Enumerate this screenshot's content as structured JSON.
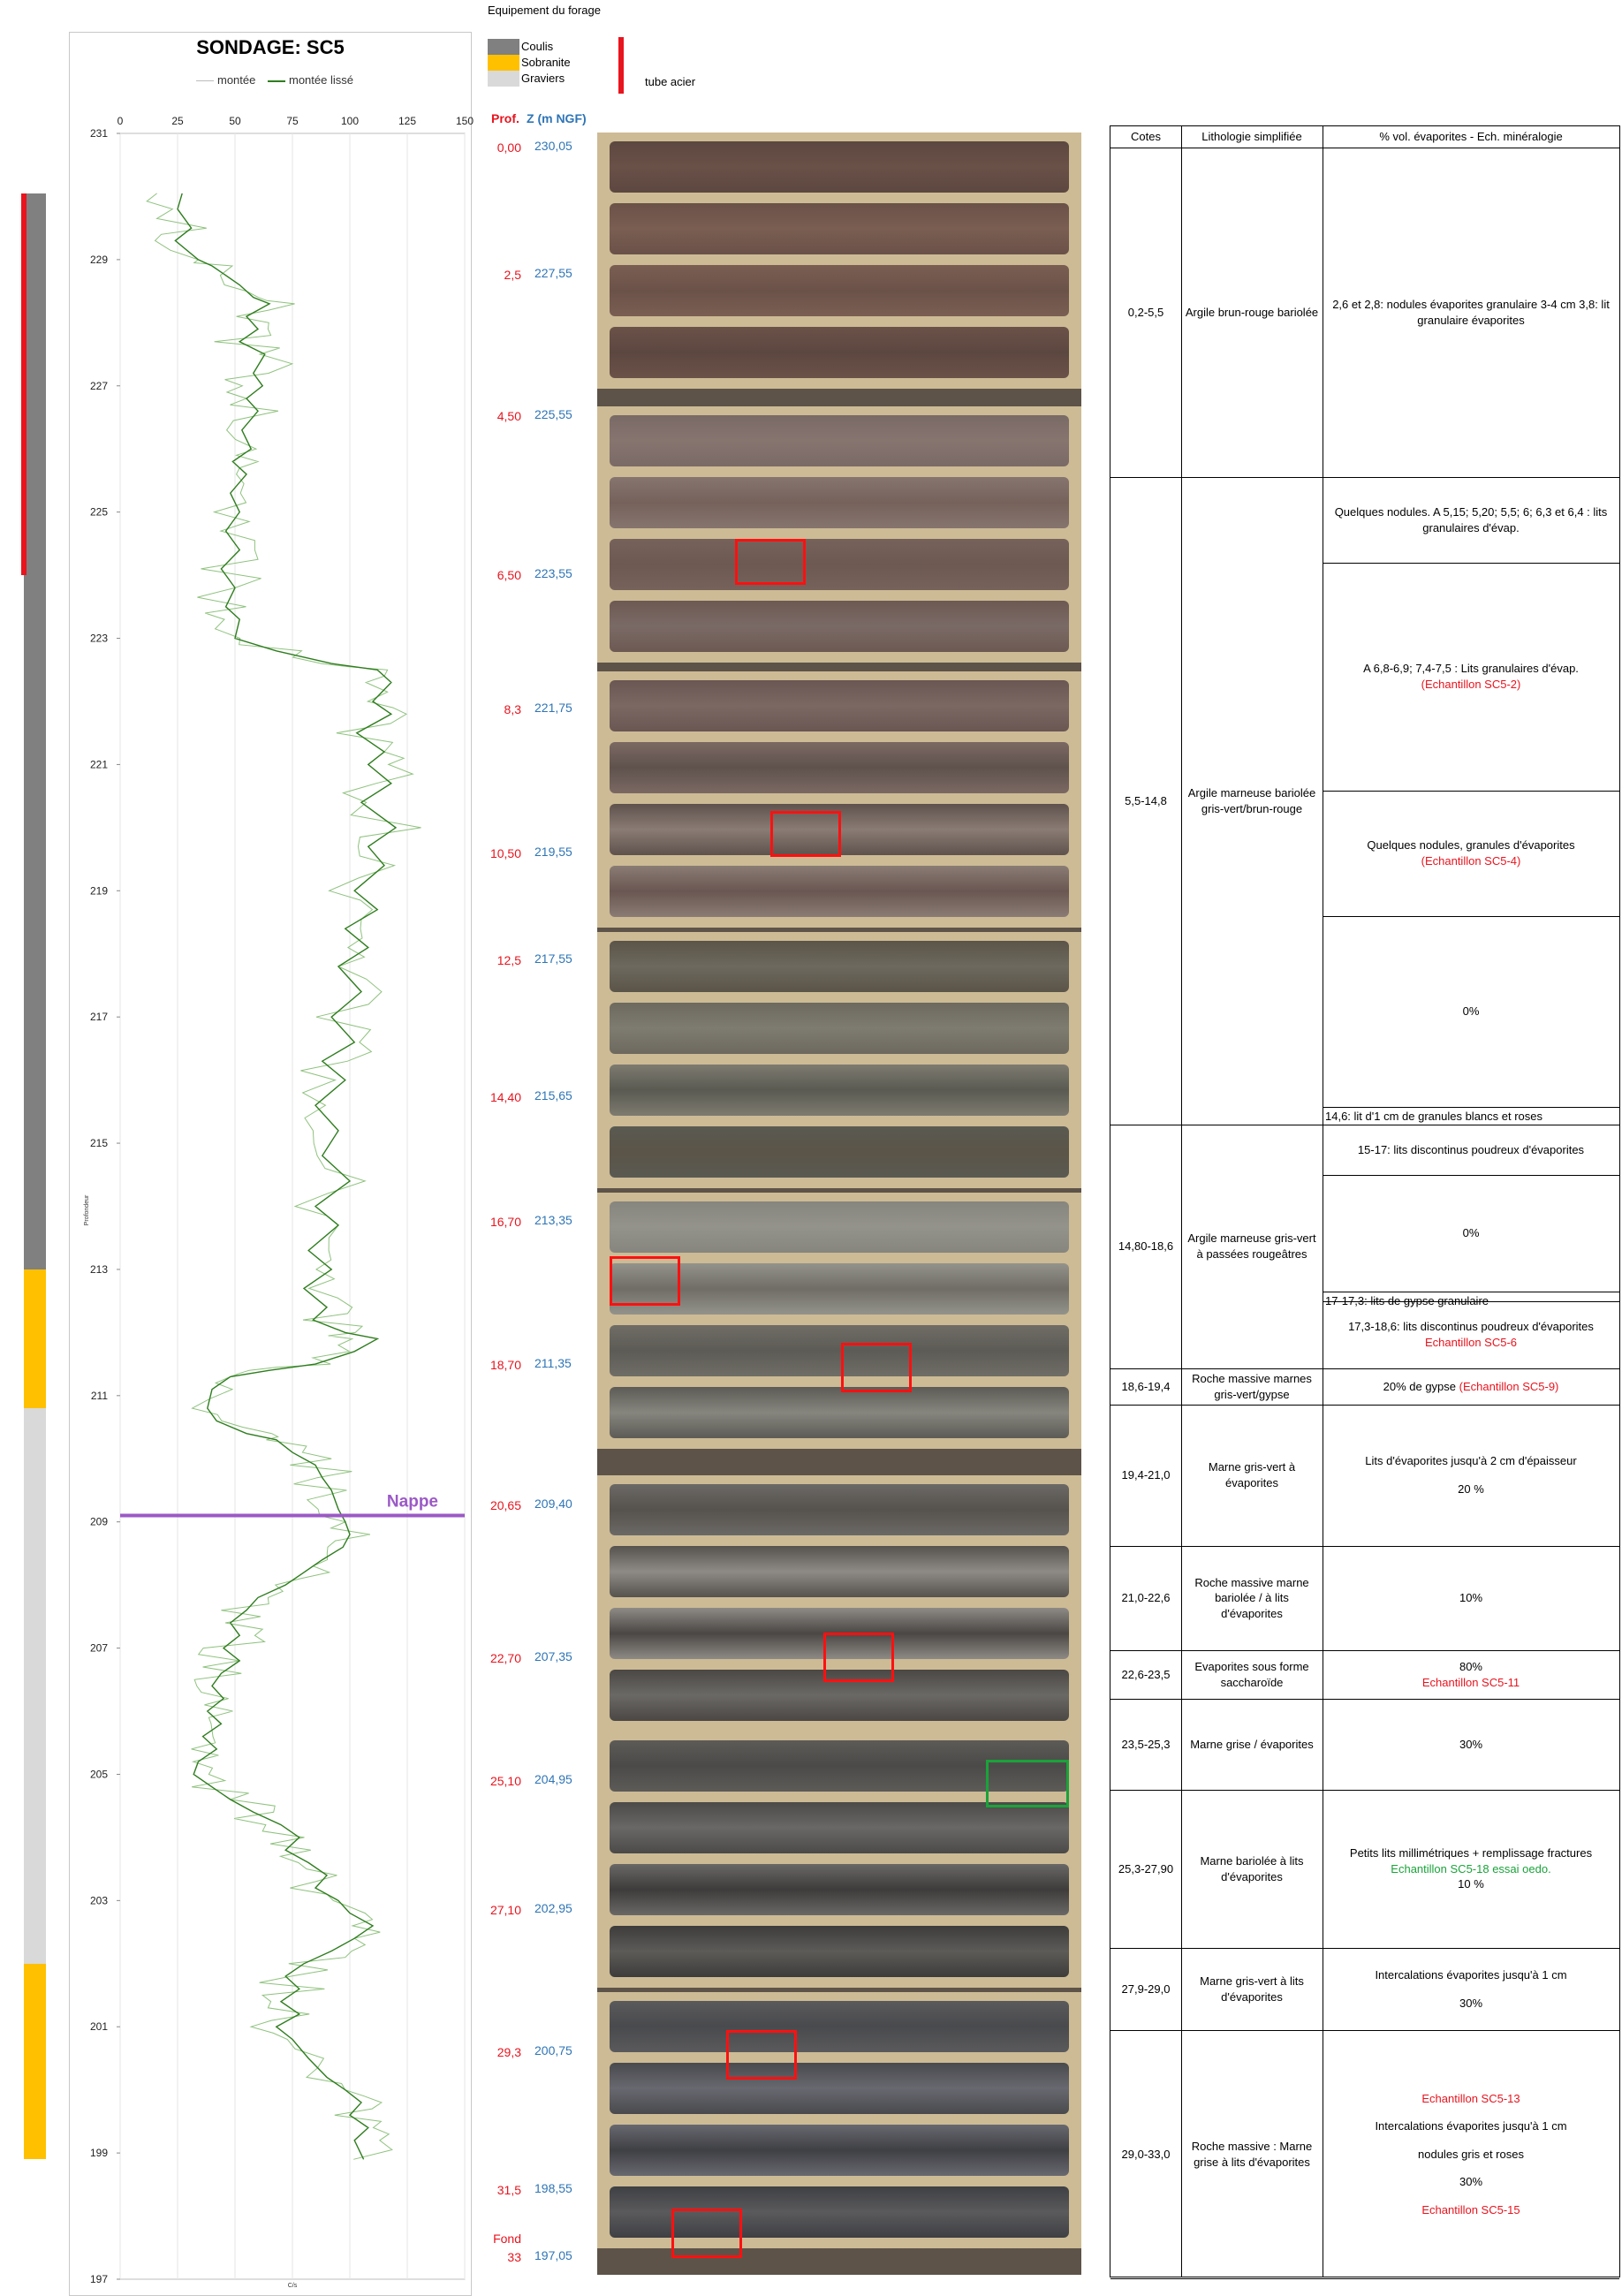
{
  "equipment": {
    "title": "Equipement du forage",
    "legend": [
      {
        "label": "Coulis",
        "color": "#808080"
      },
      {
        "label": "Sobranite",
        "color": "#ffc000"
      },
      {
        "label": "Graviers",
        "color": "#d9d9d9"
      }
    ],
    "tube_label": "tube acier",
    "tube_color": "#e8141e",
    "segments": [
      {
        "material": "Coulis",
        "from_z": 230.05,
        "to_z": 213.0
      },
      {
        "material": "Sobranite",
        "from_z": 213.0,
        "to_z": 210.8
      },
      {
        "material": "Graviers",
        "from_z": 210.8,
        "to_z": 202.0
      },
      {
        "material": "Sobranite",
        "from_z": 202.0,
        "to_z": 198.9
      }
    ],
    "tube_acier": {
      "from_z": 230.05,
      "to_z": 224.0
    }
  },
  "log": {
    "title": "SONDAGE: SC5",
    "legend": [
      "montée",
      "montée lissé"
    ],
    "y_axis_label": "Profondeur",
    "x_axis_label": "C/s",
    "nappe_label": "Nappe",
    "nappe_z": 209.1,
    "nappe_color": "#9b59c6",
    "curve_color": "#2e7d1e",
    "raw_color": "#8fc27e"
  },
  "chart_data": {
    "type": "line",
    "title": "SONDAGE: SC5",
    "xlabel": "C/s",
    "ylabel": "Profondeur",
    "xlim": [
      0,
      150
    ],
    "ylim": [
      197,
      231
    ],
    "x_ticks": [
      "0",
      "25",
      "50",
      "75",
      "100",
      "125",
      "150"
    ],
    "y_ticks": [
      "231",
      "229",
      "227",
      "225",
      "223",
      "221",
      "219",
      "217",
      "215",
      "213",
      "211",
      "209",
      "207",
      "205",
      "203",
      "201",
      "199",
      "197"
    ],
    "series": [
      {
        "name": "montée lissé",
        "points": [
          [
            27,
            230.05
          ],
          [
            25,
            229.8
          ],
          [
            31,
            229.5
          ],
          [
            24,
            229.3
          ],
          [
            34,
            229.0
          ],
          [
            40,
            228.9
          ],
          [
            52,
            228.6
          ],
          [
            58,
            228.4
          ],
          [
            65,
            228.3
          ],
          [
            55,
            228.1
          ],
          [
            60,
            227.9
          ],
          [
            52,
            227.7
          ],
          [
            63,
            227.5
          ],
          [
            58,
            227.2
          ],
          [
            62,
            227.0
          ],
          [
            55,
            226.8
          ],
          [
            60,
            226.6
          ],
          [
            53,
            226.3
          ],
          [
            57,
            226.0
          ],
          [
            49,
            225.8
          ],
          [
            55,
            225.6
          ],
          [
            48,
            225.3
          ],
          [
            52,
            225.0
          ],
          [
            46,
            224.7
          ],
          [
            52,
            224.4
          ],
          [
            44,
            224.1
          ],
          [
            50,
            223.8
          ],
          [
            46,
            223.5
          ],
          [
            52,
            223.3
          ],
          [
            50,
            223.0
          ],
          [
            68,
            222.8
          ],
          [
            92,
            222.6
          ],
          [
            112,
            222.5
          ],
          [
            118,
            222.3
          ],
          [
            110,
            222.0
          ],
          [
            118,
            221.8
          ],
          [
            103,
            221.5
          ],
          [
            115,
            221.2
          ],
          [
            108,
            221.0
          ],
          [
            118,
            220.7
          ],
          [
            105,
            220.4
          ],
          [
            120,
            220.0
          ],
          [
            108,
            219.7
          ],
          [
            115,
            219.4
          ],
          [
            102,
            219.0
          ],
          [
            112,
            218.7
          ],
          [
            98,
            218.4
          ],
          [
            108,
            218.1
          ],
          [
            95,
            217.8
          ],
          [
            105,
            217.4
          ],
          [
            92,
            217.0
          ],
          [
            102,
            216.6
          ],
          [
            88,
            216.3
          ],
          [
            98,
            216.0
          ],
          [
            85,
            215.6
          ],
          [
            95,
            215.2
          ],
          [
            88,
            214.8
          ],
          [
            100,
            214.4
          ],
          [
            85,
            214.0
          ],
          [
            95,
            213.7
          ],
          [
            82,
            213.3
          ],
          [
            92,
            213.0
          ],
          [
            80,
            212.7
          ],
          [
            90,
            212.4
          ],
          [
            84,
            212.2
          ],
          [
            98,
            212.0
          ],
          [
            112,
            211.9
          ],
          [
            102,
            211.7
          ],
          [
            85,
            211.5
          ],
          [
            65,
            211.4
          ],
          [
            48,
            211.3
          ],
          [
            40,
            211.1
          ],
          [
            38,
            210.8
          ],
          [
            42,
            210.6
          ],
          [
            55,
            210.4
          ],
          [
            68,
            210.3
          ],
          [
            75,
            210.1
          ],
          [
            85,
            209.9
          ],
          [
            88,
            209.7
          ],
          [
            92,
            209.5
          ],
          [
            95,
            209.2
          ],
          [
            98,
            209.0
          ],
          [
            100,
            208.8
          ],
          [
            97,
            208.6
          ],
          [
            88,
            208.4
          ],
          [
            80,
            208.2
          ],
          [
            72,
            208.0
          ],
          [
            60,
            207.8
          ],
          [
            55,
            207.6
          ],
          [
            48,
            207.4
          ],
          [
            52,
            207.2
          ],
          [
            45,
            207.0
          ],
          [
            52,
            206.8
          ],
          [
            44,
            206.6
          ],
          [
            40,
            206.4
          ],
          [
            45,
            206.2
          ],
          [
            38,
            206.0
          ],
          [
            44,
            205.8
          ],
          [
            36,
            205.6
          ],
          [
            42,
            205.4
          ],
          [
            34,
            205.2
          ],
          [
            32,
            205.0
          ],
          [
            40,
            204.8
          ],
          [
            48,
            204.6
          ],
          [
            58,
            204.4
          ],
          [
            70,
            204.2
          ],
          [
            78,
            204.0
          ],
          [
            72,
            203.8
          ],
          [
            82,
            203.6
          ],
          [
            90,
            203.4
          ],
          [
            85,
            203.2
          ],
          [
            95,
            203.0
          ],
          [
            100,
            202.8
          ],
          [
            110,
            202.6
          ],
          [
            102,
            202.4
          ],
          [
            92,
            202.2
          ],
          [
            80,
            202.0
          ],
          [
            72,
            201.8
          ],
          [
            78,
            201.6
          ],
          [
            70,
            201.4
          ],
          [
            78,
            201.2
          ],
          [
            68,
            201.0
          ],
          [
            75,
            200.8
          ],
          [
            82,
            200.5
          ],
          [
            90,
            200.2
          ],
          [
            98,
            200.0
          ],
          [
            105,
            199.8
          ],
          [
            100,
            199.6
          ],
          [
            108,
            199.4
          ],
          [
            102,
            199.2
          ],
          [
            106,
            198.9
          ]
        ]
      }
    ],
    "nappe": {
      "z": 209.1,
      "label": "Nappe"
    }
  },
  "cores": {
    "header_prof": "Prof.",
    "header_z": "Z (m NGF)",
    "depth_labels": [
      {
        "prof": "0,00",
        "z": "230,05"
      },
      {
        "prof": "2,5",
        "z": "227,55"
      },
      {
        "prof": "4,50",
        "z": "225,55"
      },
      {
        "prof": "6,50",
        "z": "223,55"
      },
      {
        "prof": "8,3",
        "z": "221,75"
      },
      {
        "prof": "10,50",
        "z": "219,55"
      },
      {
        "prof": "12,5",
        "z": "217,55"
      },
      {
        "prof": "14,40",
        "z": "215,65"
      },
      {
        "prof": "16,70",
        "z": "213,35"
      },
      {
        "prof": "18,70",
        "z": "211,35"
      },
      {
        "prof": "20,65",
        "z": "209,40"
      },
      {
        "prof": "22,70",
        "z": "207,35"
      },
      {
        "prof": "25,10",
        "z": "204,95"
      },
      {
        "prof": "27,10",
        "z": "202,95"
      },
      {
        "prof": "29,3",
        "z": "200,75"
      },
      {
        "prof": "31,5",
        "z": "198,55"
      },
      {
        "prof": "Fond\n33",
        "z": "197,05"
      }
    ]
  },
  "table": {
    "headers": [
      "Cotes",
      "Lithologie simplifiée",
      "% vol. évaporites - Ech. minéralogie"
    ],
    "rows": [
      {
        "cotes": "0,2-5,5",
        "litho": "Argile brun-rouge bariolée",
        "notes": [
          {
            "text": "2,6 et 2,8: nodules évaporites granulaire 3-4 cm 3,8: lit granulaire évaporites"
          }
        ]
      },
      {
        "cotes": "5,5-14,8",
        "litho": "Argile marneuse bariolée gris-vert/brun-rouge",
        "notes": [
          {
            "text": "Quelques nodules. A 5,15; 5,20; 5,5; 6; 6,3 et 6,4 : lits granulaires d'évap."
          },
          {
            "text": "A 6,8-6,9; 7,4-7,5 : Lits granulaires d'évap.",
            "sample": "(Echantillon SC5-2)"
          },
          {
            "text": "Quelques nodules, granules d'évaporites",
            "sample": "(Echantillon SC5-4)"
          },
          {
            "text": "0%"
          },
          {
            "text": "14,6: lit d'1 cm de granules blancs et roses"
          }
        ]
      },
      {
        "cotes": "14,80-18,6",
        "litho": "Argile marneuse gris-vert à passées rougeâtres",
        "notes": [
          {
            "text": "15-17: lits discontinus poudreux d'évaporites"
          },
          {
            "text": "0%"
          },
          {
            "text": "17-17,3: lits de gypse granulaire"
          },
          {
            "text": "17,3-18,6: lits discontinus poudreux d'évaporites",
            "sample": "Echantillon SC5-6"
          }
        ]
      },
      {
        "cotes": "18,6-19,4",
        "litho": "Roche massive marnes gris-vert/gypse",
        "notes": [
          {
            "text": "20% de gypse",
            "sample_inline": "(Echantillon SC5-9)"
          }
        ]
      },
      {
        "cotes": "19,4-21,0",
        "litho": "Marne gris-vert à évaporites",
        "notes": [
          {
            "text": "Lits d'évaporites jusqu'à 2 cm d'épaisseur",
            "extra": "20 %"
          }
        ]
      },
      {
        "cotes": "21,0-22,6",
        "litho": "Roche massive marne bariolée / à lits d'évaporites",
        "notes": [
          {
            "text": "10%"
          }
        ]
      },
      {
        "cotes": "22,6-23,5",
        "litho": "Evaporites sous forme saccharoïde",
        "notes": [
          {
            "text": "80%",
            "sample": "Echantillon SC5-11"
          }
        ]
      },
      {
        "cotes": "23,5-25,3",
        "litho": "Marne grise / évaporites",
        "notes": [
          {
            "text": "30%"
          }
        ]
      },
      {
        "cotes": "25,3-27,90",
        "litho": "Marne bariolée à lits d'évaporites",
        "notes": [
          {
            "text": "Petits lits millimétriques + remplissage fractures",
            "sample_green": "Echantillon SC5-18 essai oedo.",
            "extra": "10 %"
          }
        ]
      },
      {
        "cotes": "27,9-29,0",
        "litho": "Marne gris-vert à lits d'évaporites",
        "notes": [
          {
            "text": "Intercalations évaporites jusqu'à 1 cm",
            "extra": "30%"
          }
        ]
      },
      {
        "cotes": "29,0-33,0",
        "litho": "Roche massive : Marne grise à lits d'évaporites",
        "notes": [
          {
            "sample_top": "Echantillon SC5-13",
            "text": "Intercalations évaporites jusqu'à 1 cm",
            "extra": "nodules gris et roses",
            "extra2": "30%",
            "sample": "Echantillon SC5-15"
          }
        ]
      }
    ]
  }
}
